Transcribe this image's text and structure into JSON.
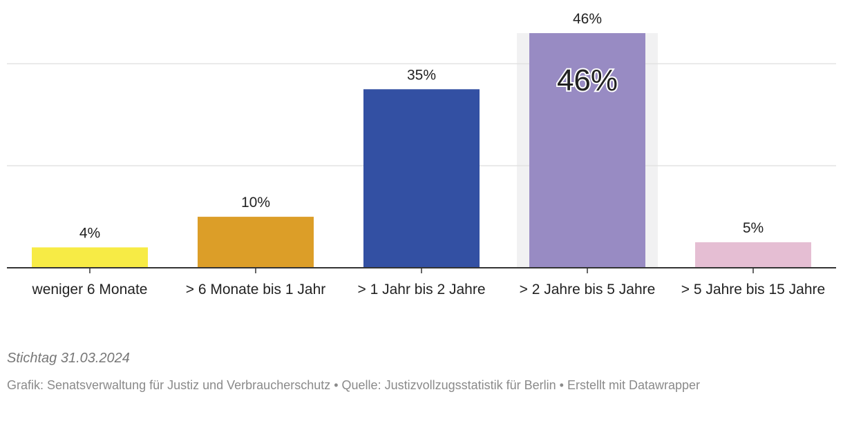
{
  "chart_data": {
    "type": "bar",
    "categories": [
      "weniger 6 Monate",
      "> 6 Monate bis 1 Jahr",
      "> 1 Jahr bis 2 Jahre",
      "> 2 Jahre bis 5 Jahre",
      "> 5 Jahre bis 15 Jahre"
    ],
    "values": [
      4,
      10,
      35,
      46,
      5
    ],
    "value_labels": [
      "4%",
      "10%",
      "35%",
      "46%",
      "5%"
    ],
    "colors": [
      "#f7eb45",
      "#dc9e28",
      "#3350a3",
      "#988bc3",
      "#e5bed3"
    ],
    "highlight_index": 3,
    "highlight_label": "46%",
    "title": "",
    "xlabel": "",
    "ylabel": "",
    "ylim": [
      0,
      46
    ],
    "gridlines": [
      20,
      40
    ],
    "grid": true,
    "legend": "none"
  },
  "footer": {
    "note": "Stichtag 31.03.2024",
    "credit": "Grafik: Senatsverwaltung für Justiz und Verbraucherschutz • Quelle: Justizvollzugsstatistik für Berlin • Erstellt mit Datawrapper"
  }
}
